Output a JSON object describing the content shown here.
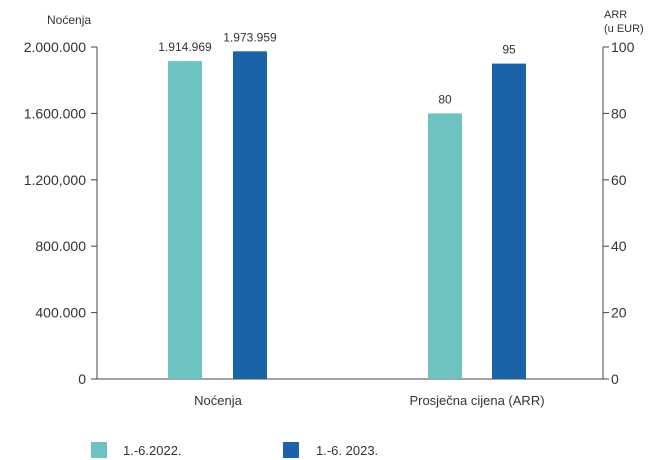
{
  "chart_data": {
    "type": "bar",
    "left_axis_title": "Noćenja",
    "right_axis_title_lines": [
      "ARR",
      "(u EUR)"
    ],
    "categories": [
      "Noćenja",
      "Prosječna cijena (ARR)"
    ],
    "left_ticks": [
      "0",
      "400.000",
      "800.000",
      "1.200,000",
      "1.600.000",
      "2.000.000"
    ],
    "left_tick_values": [
      0,
      400000,
      800000,
      1200000,
      1600000,
      2000000
    ],
    "right_ticks": [
      "0",
      "20",
      "40",
      "60",
      "80",
      "100"
    ],
    "right_tick_values": [
      0,
      20,
      40,
      60,
      80,
      100
    ],
    "ylim_left": [
      0,
      2000000
    ],
    "ylim_right": [
      0,
      100
    ],
    "series": [
      {
        "name": "1.-6.2022.",
        "color": "#6cc3bf",
        "values": [
          1914969,
          80
        ],
        "labels": [
          "1.914.969",
          "80"
        ]
      },
      {
        "name": "1.-6. 2023.",
        "color": "#1b63a8",
        "values": [
          1973959,
          95
        ],
        "labels": [
          "1.973.959",
          "95"
        ]
      }
    ],
    "axes_for_category": [
      "left",
      "right"
    ],
    "legend_position": "bottom-left",
    "grid": false
  }
}
